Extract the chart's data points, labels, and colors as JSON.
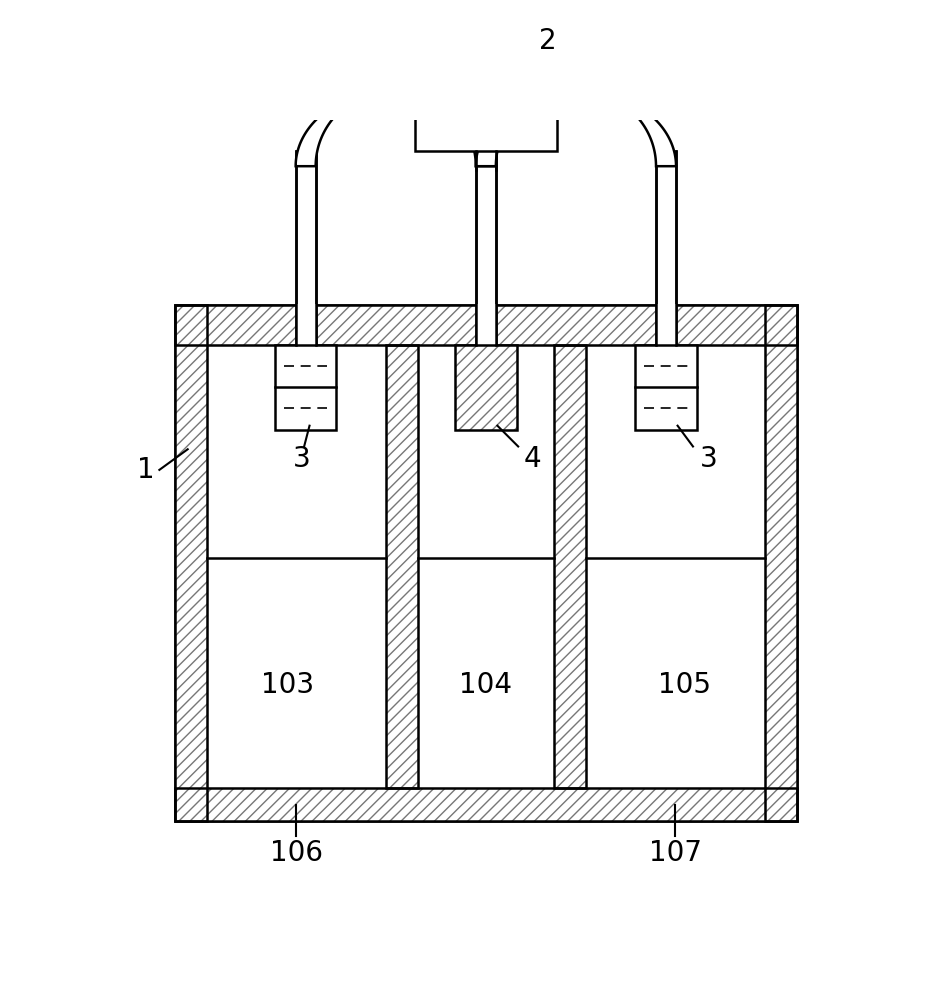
{
  "bg_color": "#ffffff",
  "line_color": "#000000",
  "lw": 1.8,
  "pipe_lw": 2.0,
  "hatch_density": "///",
  "label_1": "1",
  "label_2": "2",
  "label_3": "3",
  "label_4": "4",
  "label_103": "103",
  "label_104": "104",
  "label_105": "105",
  "label_106": "106",
  "label_107": "107",
  "label_fontsize": 20
}
